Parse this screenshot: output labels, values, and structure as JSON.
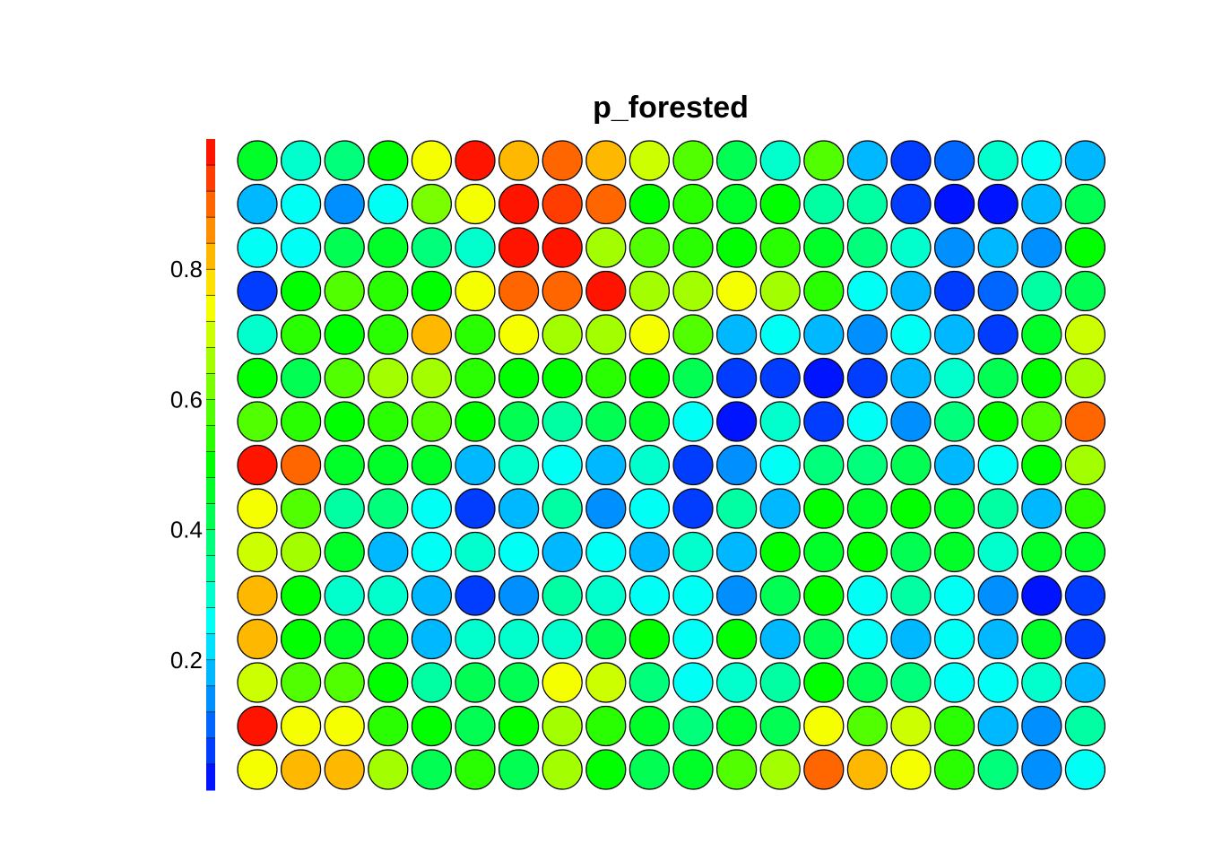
{
  "chart_data": {
    "type": "heatmap",
    "title": "p_forested",
    "subtitle": "",
    "xlabel": "",
    "ylabel": "",
    "grid": false,
    "legend": "left",
    "colorbar": {
      "range": [
        0,
        1
      ],
      "bins": 25,
      "ticks": [
        {
          "value": 0.2,
          "label": "0.2"
        },
        {
          "value": 0.4,
          "label": "0.4"
        },
        {
          "value": 0.6,
          "label": "0.6"
        },
        {
          "value": 0.8,
          "label": "0.8"
        }
      ]
    },
    "nrow": 15,
    "ncol": 20,
    "cells": [
      [
        0.46,
        0.31,
        0.38,
        0.48,
        0.73,
        0.96,
        0.8,
        0.88,
        0.8,
        0.7,
        0.58,
        0.42,
        0.3,
        0.58,
        0.18,
        0.07,
        0.08,
        0.31,
        0.24,
        0.18
      ],
      [
        0.18,
        0.25,
        0.14,
        0.25,
        0.63,
        0.73,
        0.97,
        0.95,
        0.88,
        0.5,
        0.54,
        0.46,
        0.48,
        0.35,
        0.35,
        0.06,
        0.02,
        0.02,
        0.18,
        0.4
      ],
      [
        0.24,
        0.24,
        0.4,
        0.45,
        0.38,
        0.3,
        0.97,
        0.96,
        0.64,
        0.58,
        0.54,
        0.5,
        0.54,
        0.44,
        0.38,
        0.3,
        0.14,
        0.18,
        0.14,
        0.48
      ],
      [
        0.06,
        0.48,
        0.58,
        0.52,
        0.48,
        0.73,
        0.88,
        0.88,
        0.96,
        0.64,
        0.66,
        0.73,
        0.64,
        0.52,
        0.24,
        0.18,
        0.06,
        0.08,
        0.35,
        0.4
      ],
      [
        0.3,
        0.52,
        0.5,
        0.54,
        0.8,
        0.54,
        0.73,
        0.66,
        0.66,
        0.73,
        0.58,
        0.18,
        0.24,
        0.18,
        0.14,
        0.24,
        0.18,
        0.06,
        0.46,
        0.7
      ],
      [
        0.48,
        0.4,
        0.58,
        0.64,
        0.64,
        0.52,
        0.5,
        0.48,
        0.54,
        0.5,
        0.42,
        0.06,
        0.07,
        0.02,
        0.07,
        0.18,
        0.3,
        0.42,
        0.48,
        0.64
      ],
      [
        0.58,
        0.54,
        0.5,
        0.54,
        0.56,
        0.48,
        0.42,
        0.35,
        0.42,
        0.44,
        0.24,
        0.02,
        0.3,
        0.07,
        0.24,
        0.14,
        0.38,
        0.48,
        0.58,
        0.88
      ],
      [
        0.97,
        0.88,
        0.44,
        0.46,
        0.44,
        0.18,
        0.3,
        0.24,
        0.18,
        0.3,
        0.07,
        0.14,
        0.24,
        0.38,
        0.38,
        0.4,
        0.18,
        0.24,
        0.48,
        0.64
      ],
      [
        0.73,
        0.58,
        0.35,
        0.38,
        0.24,
        0.06,
        0.18,
        0.35,
        0.14,
        0.24,
        0.07,
        0.35,
        0.18,
        0.48,
        0.46,
        0.48,
        0.46,
        0.35,
        0.18,
        0.54
      ],
      [
        0.7,
        0.64,
        0.44,
        0.18,
        0.24,
        0.3,
        0.24,
        0.18,
        0.24,
        0.18,
        0.3,
        0.18,
        0.48,
        0.46,
        0.48,
        0.4,
        0.46,
        0.3,
        0.44,
        0.46
      ],
      [
        0.8,
        0.48,
        0.3,
        0.3,
        0.18,
        0.06,
        0.14,
        0.35,
        0.3,
        0.24,
        0.24,
        0.14,
        0.42,
        0.48,
        0.24,
        0.35,
        0.24,
        0.14,
        0.02,
        0.07
      ],
      [
        0.8,
        0.48,
        0.46,
        0.46,
        0.18,
        0.3,
        0.3,
        0.3,
        0.4,
        0.48,
        0.24,
        0.48,
        0.18,
        0.42,
        0.24,
        0.18,
        0.24,
        0.18,
        0.46,
        0.07
      ],
      [
        0.7,
        0.58,
        0.58,
        0.48,
        0.35,
        0.4,
        0.42,
        0.73,
        0.7,
        0.38,
        0.24,
        0.3,
        0.35,
        0.48,
        0.4,
        0.38,
        0.24,
        0.24,
        0.3,
        0.18
      ],
      [
        0.97,
        0.73,
        0.73,
        0.52,
        0.48,
        0.4,
        0.48,
        0.64,
        0.54,
        0.44,
        0.38,
        0.46,
        0.42,
        0.73,
        0.56,
        0.7,
        0.52,
        0.18,
        0.14,
        0.35
      ],
      [
        0.73,
        0.8,
        0.8,
        0.64,
        0.42,
        0.54,
        0.42,
        0.64,
        0.5,
        0.42,
        0.46,
        0.58,
        0.64,
        0.88,
        0.8,
        0.73,
        0.52,
        0.38,
        0.14,
        0.24
      ]
    ]
  }
}
